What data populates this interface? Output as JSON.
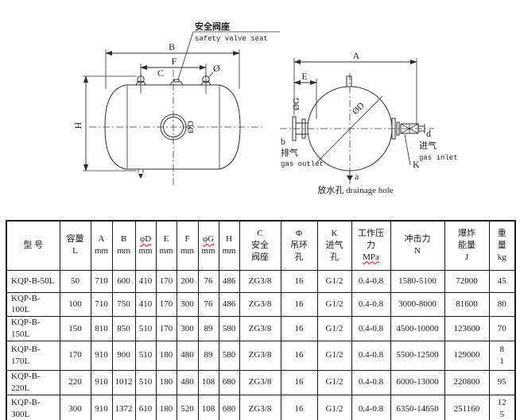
{
  "drawings": {
    "side_view": {
      "annotation_cn": "安全阀座",
      "annotation_en": "safety valve seat",
      "dim_B": "B",
      "dim_F": "F",
      "dim_C": "C",
      "dim_phi": "Ø",
      "dim_H": "H",
      "dim_phiD": "ØD"
    },
    "end_view": {
      "dim_A": "A",
      "dim_E": "E",
      "dim_phiG": "ØG",
      "dim_phiD": "ØD",
      "outlet_letter": "b",
      "outlet_cn": "排气",
      "outlet_en": "gas outlet",
      "inlet_letter": "d",
      "inlet_cn": "进气",
      "inlet_en": "gas inlet",
      "dim_K": "K",
      "drain_letter": "a",
      "drain_label": "放水孔  drainage hole"
    }
  },
  "table": {
    "columns": [
      {
        "lines": [
          "型  号"
        ]
      },
      {
        "lines": [
          "容量",
          "L"
        ]
      },
      {
        "lines": [
          "A",
          "mm"
        ]
      },
      {
        "lines": [
          "B",
          "mm"
        ]
      },
      {
        "lines": [
          "φD",
          "mm"
        ]
      },
      {
        "lines": [
          "E",
          "mm"
        ]
      },
      {
        "lines": [
          "F",
          "mm"
        ]
      },
      {
        "lines": [
          "φG",
          "mm"
        ]
      },
      {
        "lines": [
          "H",
          "mm"
        ]
      },
      {
        "lines": [
          "C",
          "安全",
          "阀座"
        ]
      },
      {
        "lines": [
          "Φ",
          "吊环",
          "孔"
        ]
      },
      {
        "lines": [
          "K",
          "进气",
          "孔"
        ]
      },
      {
        "lines": [
          "工作压",
          "力",
          "MPa"
        ]
      },
      {
        "lines": [
          "冲击力",
          "N"
        ]
      },
      {
        "lines": [
          "爆炸",
          "能量",
          "J"
        ]
      },
      {
        "lines": [
          "重",
          "量",
          "kg"
        ]
      }
    ],
    "rows": [
      {
        "cells": [
          "KQP-B-50L",
          "50",
          "710",
          "600",
          "410",
          "170",
          "200",
          "76",
          "486",
          "ZG3/8",
          "16",
          "G1/2",
          "0.4-0.8",
          "1580-5100",
          "72000",
          "45"
        ]
      },
      {
        "cells": [
          "KQP-B-100L",
          "100",
          "710",
          "750",
          "410",
          "170",
          "300",
          "76",
          "486",
          "ZG3/8",
          "16",
          "G1/2",
          "0.4-0.8",
          "3000-8000",
          "81600",
          "80"
        ]
      },
      {
        "cells": [
          "KQP-B-150L",
          "150",
          "810",
          "850",
          "510",
          "170",
          "300",
          "89",
          "580",
          "ZG3/8",
          "16",
          "G1/2",
          "0.4-0.8",
          "4500-10000",
          "123600",
          "70"
        ]
      },
      {
        "cells": [
          "KQP-B-170L",
          "170",
          "910",
          "900",
          "510",
          "180",
          "480",
          "89",
          "580",
          "ZG3/8",
          "16",
          "G1/2",
          "0.4-0.8",
          "5500-12500",
          "129000",
          "8\n1"
        ]
      },
      {
        "cells": [
          "KQP-B-220L",
          "220",
          "910",
          "1012",
          "510",
          "180",
          "480",
          "108",
          "680",
          "ZG3/8",
          "16",
          "G1/2",
          "0.4-0.8",
          "6000-13000",
          "220800",
          "95"
        ]
      },
      {
        "cells": [
          "KQP-B-300L",
          "300",
          "910",
          "1372",
          "610",
          "180",
          "520",
          "108",
          "680",
          "ZG3/8",
          "16",
          "G1/2",
          "0.4-0.8",
          "6350-14650",
          "251160",
          "12\n5"
        ]
      }
    ]
  }
}
